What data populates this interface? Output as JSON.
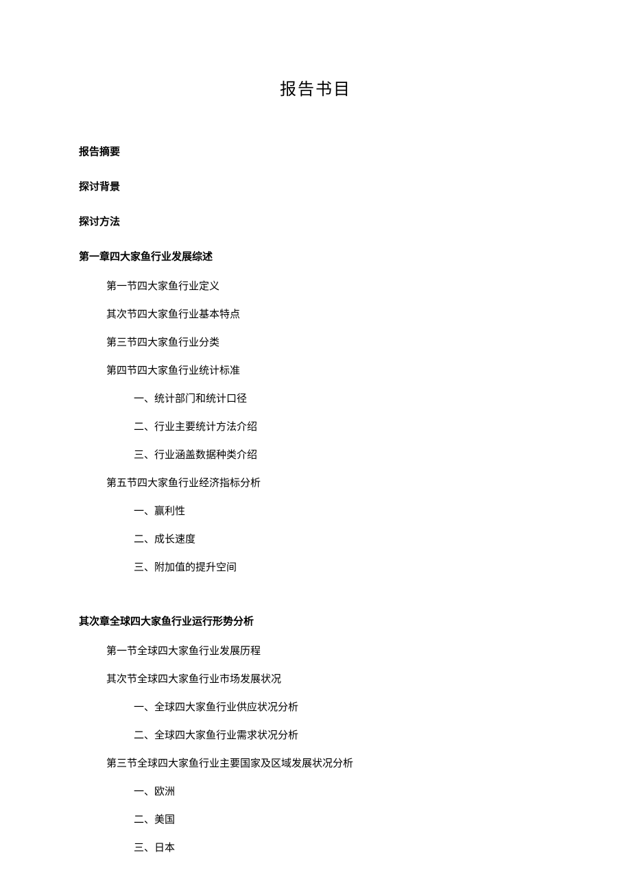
{
  "title": "报告书目",
  "front_matter": [
    "报告摘要",
    "探讨背景",
    "探讨方法"
  ],
  "chapters": [
    {
      "title": "第一章四大家鱼行业发展综述",
      "sections": [
        {
          "text": "第一节四大家鱼行业定义",
          "subsections": []
        },
        {
          "text": "其次节四大家鱼行业基本特点",
          "subsections": []
        },
        {
          "text": "第三节四大家鱼行业分类",
          "subsections": []
        },
        {
          "text": "第四节四大家鱼行业统计标准",
          "subsections": [
            "一、统计部门和统计口径",
            "二、行业主要统计方法介绍",
            "三、行业涵盖数据种类介绍"
          ]
        },
        {
          "text": "第五节四大家鱼行业经济指标分析",
          "subsections": [
            "一、赢利性",
            "二、成长速度",
            "三、附加值的提升空间"
          ]
        }
      ]
    },
    {
      "title": "其次章全球四大家鱼行业运行形势分析",
      "sections": [
        {
          "text": "第一节全球四大家鱼行业发展历程",
          "subsections": []
        },
        {
          "text": "其次节全球四大家鱼行业市场发展状况",
          "subsections": [
            "一、全球四大家鱼行业供应状况分析",
            "二、全球四大家鱼行业需求状况分析"
          ]
        },
        {
          "text": "第三节全球四大家鱼行业主要国家及区域发展状况分析",
          "subsections": [
            "一、欧洲",
            "二、美国",
            "三、日本"
          ]
        }
      ]
    }
  ],
  "text_color": "#000000",
  "background_color": "#ffffff",
  "title_fontsize": 24,
  "heading_fontsize": 15,
  "body_fontsize": 15
}
